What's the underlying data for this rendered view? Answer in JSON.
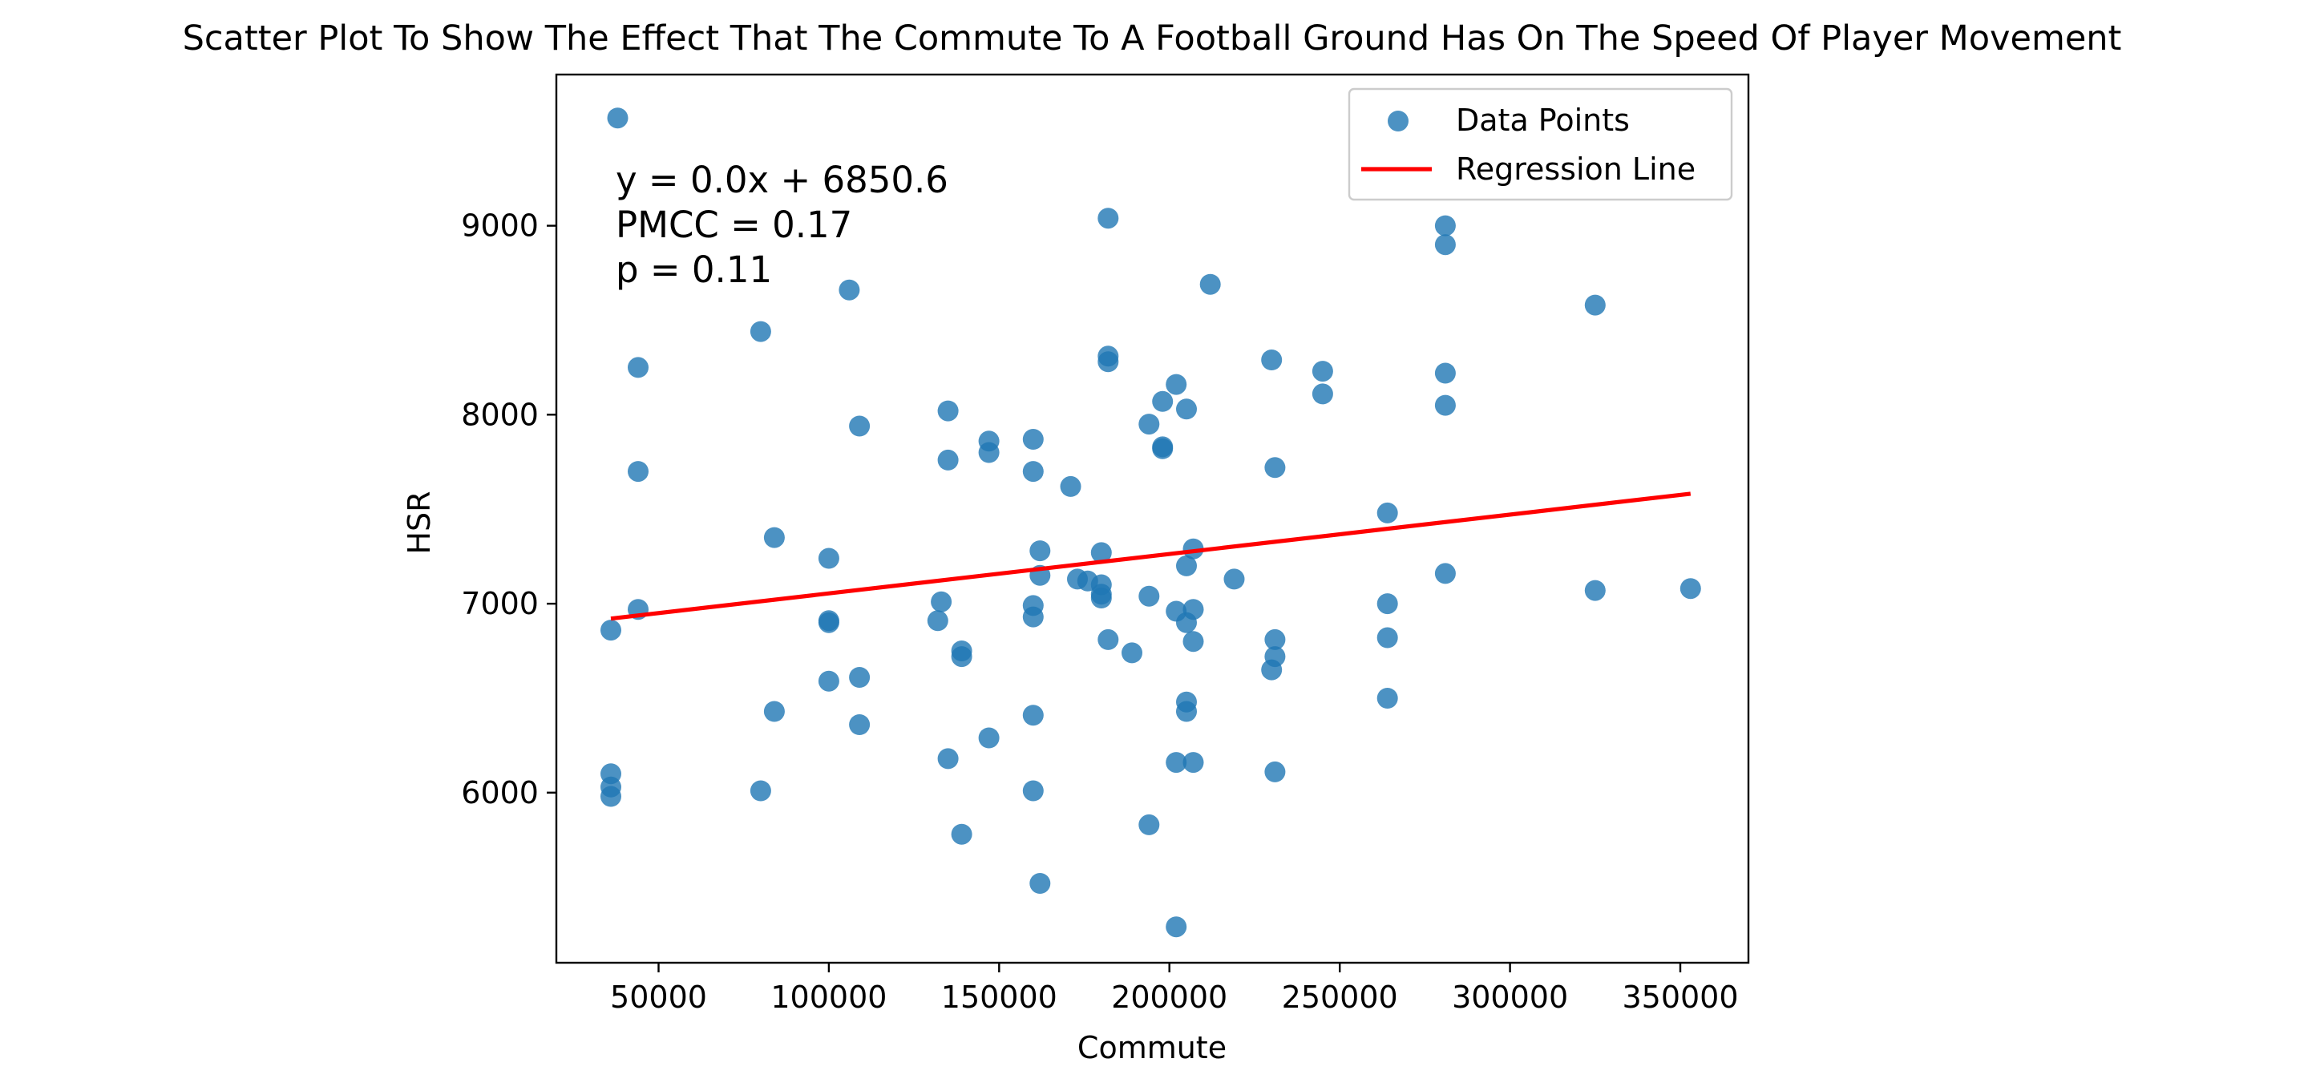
{
  "chart_data": {
    "type": "scatter",
    "title": "Scatter Plot To Show The Effect That The Commute To A Football Ground Has On The Speed Of Player Movement",
    "xlabel": "Commute",
    "ylabel": "HSR",
    "xlim": [
      20000,
      370000
    ],
    "ylim": [
      5100,
      9800
    ],
    "x_ticks": [
      50000,
      100000,
      150000,
      200000,
      250000,
      300000,
      350000
    ],
    "y_ticks": [
      6000,
      7000,
      8000,
      9000
    ],
    "grid": false,
    "legend": {
      "placement": "top-right",
      "entries": [
        "Data Points",
        "Regression Line"
      ]
    },
    "annotations": [
      "y =  0.0x +  6850.6",
      "PMCC =  0.17",
      "p =  0.11"
    ],
    "regression": {
      "x": [
        36000,
        353000
      ],
      "y": [
        6921,
        7582
      ]
    },
    "points": [
      [
        38000,
        9570
      ],
      [
        36000,
        6860
      ],
      [
        36000,
        6100
      ],
      [
        36000,
        6030
      ],
      [
        36000,
        5980
      ],
      [
        44000,
        8250
      ],
      [
        44000,
        7700
      ],
      [
        44000,
        6970
      ],
      [
        80000,
        8440
      ],
      [
        80000,
        6010
      ],
      [
        84000,
        7350
      ],
      [
        84000,
        6430
      ],
      [
        100000,
        7240
      ],
      [
        100000,
        6910
      ],
      [
        100000,
        6900
      ],
      [
        100000,
        6590
      ],
      [
        106000,
        8660
      ],
      [
        109000,
        7940
      ],
      [
        109000,
        6610
      ],
      [
        109000,
        6360
      ],
      [
        132000,
        6910
      ],
      [
        133000,
        7010
      ],
      [
        135000,
        8020
      ],
      [
        135000,
        7760
      ],
      [
        135000,
        6180
      ],
      [
        139000,
        6750
      ],
      [
        139000,
        6720
      ],
      [
        139000,
        5780
      ],
      [
        147000,
        7860
      ],
      [
        147000,
        7800
      ],
      [
        147000,
        6290
      ],
      [
        160000,
        7870
      ],
      [
        160000,
        7700
      ],
      [
        160000,
        6990
      ],
      [
        160000,
        6930
      ],
      [
        160000,
        6410
      ],
      [
        160000,
        6010
      ],
      [
        162000,
        7280
      ],
      [
        162000,
        7150
      ],
      [
        162000,
        5520
      ],
      [
        171000,
        7620
      ],
      [
        173000,
        7130
      ],
      [
        176000,
        7120
      ],
      [
        180000,
        7270
      ],
      [
        180000,
        7100
      ],
      [
        180000,
        7050
      ],
      [
        180000,
        7030
      ],
      [
        182000,
        9040
      ],
      [
        182000,
        8310
      ],
      [
        182000,
        8280
      ],
      [
        182000,
        6810
      ],
      [
        189000,
        6740
      ],
      [
        194000,
        7950
      ],
      [
        194000,
        7040
      ],
      [
        194000,
        5830
      ],
      [
        198000,
        8070
      ],
      [
        198000,
        7830
      ],
      [
        198000,
        7820
      ],
      [
        202000,
        8160
      ],
      [
        202000,
        6960
      ],
      [
        202000,
        6160
      ],
      [
        202000,
        5290
      ],
      [
        205000,
        8030
      ],
      [
        205000,
        7200
      ],
      [
        205000,
        6900
      ],
      [
        205000,
        6480
      ],
      [
        205000,
        6430
      ],
      [
        207000,
        7290
      ],
      [
        207000,
        6970
      ],
      [
        207000,
        6800
      ],
      [
        207000,
        6160
      ],
      [
        212000,
        8690
      ],
      [
        219000,
        7130
      ],
      [
        230000,
        8290
      ],
      [
        230000,
        6650
      ],
      [
        231000,
        7720
      ],
      [
        231000,
        6810
      ],
      [
        231000,
        6720
      ],
      [
        231000,
        6110
      ],
      [
        245000,
        8230
      ],
      [
        245000,
        8110
      ],
      [
        264000,
        7480
      ],
      [
        264000,
        7000
      ],
      [
        264000,
        6820
      ],
      [
        264000,
        6500
      ],
      [
        281000,
        9000
      ],
      [
        281000,
        8900
      ],
      [
        281000,
        8220
      ],
      [
        281000,
        8050
      ],
      [
        281000,
        7160
      ],
      [
        325000,
        8580
      ],
      [
        325000,
        7070
      ],
      [
        353000,
        7080
      ]
    ],
    "colors": {
      "points": "#1f77b4",
      "regression": "#ff0000"
    }
  }
}
